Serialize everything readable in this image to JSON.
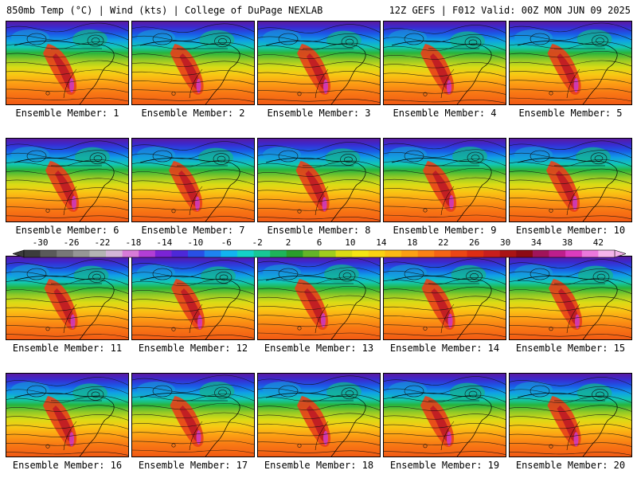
{
  "header": {
    "left": "850mb Temp (°C) | Wind (kts) | College of DuPage NEXLAB",
    "right": "12Z GEFS | F012 Valid: 00Z MON JUN 09 2025"
  },
  "panels": [
    {
      "label": "Ensemble Member: 1"
    },
    {
      "label": "Ensemble Member: 2"
    },
    {
      "label": "Ensemble Member: 3"
    },
    {
      "label": "Ensemble Member: 4"
    },
    {
      "label": "Ensemble Member: 5"
    },
    {
      "label": "Ensemble Member: 6"
    },
    {
      "label": "Ensemble Member: 7"
    },
    {
      "label": "Ensemble Member: 8"
    },
    {
      "label": "Ensemble Member: 9"
    },
    {
      "label": "Ensemble Member: 10"
    },
    {
      "label": "Ensemble Member: 11"
    },
    {
      "label": "Ensemble Member: 12"
    },
    {
      "label": "Ensemble Member: 13"
    },
    {
      "label": "Ensemble Member: 14"
    },
    {
      "label": "Ensemble Member: 15"
    },
    {
      "label": "Ensemble Member: 16"
    },
    {
      "label": "Ensemble Member: 17"
    },
    {
      "label": "Ensemble Member: 18"
    },
    {
      "label": "Ensemble Member: 19"
    },
    {
      "label": "Ensemble Member: 20"
    }
  ],
  "colorbar": {
    "ticks": [
      "-30",
      "-26",
      "-22",
      "-18",
      "-14",
      "-10",
      "-6",
      "-2",
      "2",
      "6",
      "10",
      "14",
      "18",
      "22",
      "26",
      "30",
      "34",
      "38",
      "42"
    ],
    "colors": [
      "#3c3c3c",
      "#5a5a5a",
      "#787878",
      "#969696",
      "#b4b4b4",
      "#d4b4d8",
      "#d77bd8",
      "#b13ed6",
      "#7a23d6",
      "#4d28d8",
      "#2850e6",
      "#1e84f0",
      "#12b4f0",
      "#14d2c8",
      "#18c896",
      "#1eb45a",
      "#2a9e2a",
      "#64b428",
      "#a0cd1e",
      "#dcdc14",
      "#f5e614",
      "#fad214",
      "#fcb914",
      "#fca014",
      "#fa8214",
      "#f56414",
      "#eb4614",
      "#dc2d14",
      "#c81e1e",
      "#aa1414",
      "#8c0a14",
      "#a0145a",
      "#be1e8c",
      "#dc3cbe",
      "#eb78dc",
      "#f5b4eb"
    ]
  }
}
